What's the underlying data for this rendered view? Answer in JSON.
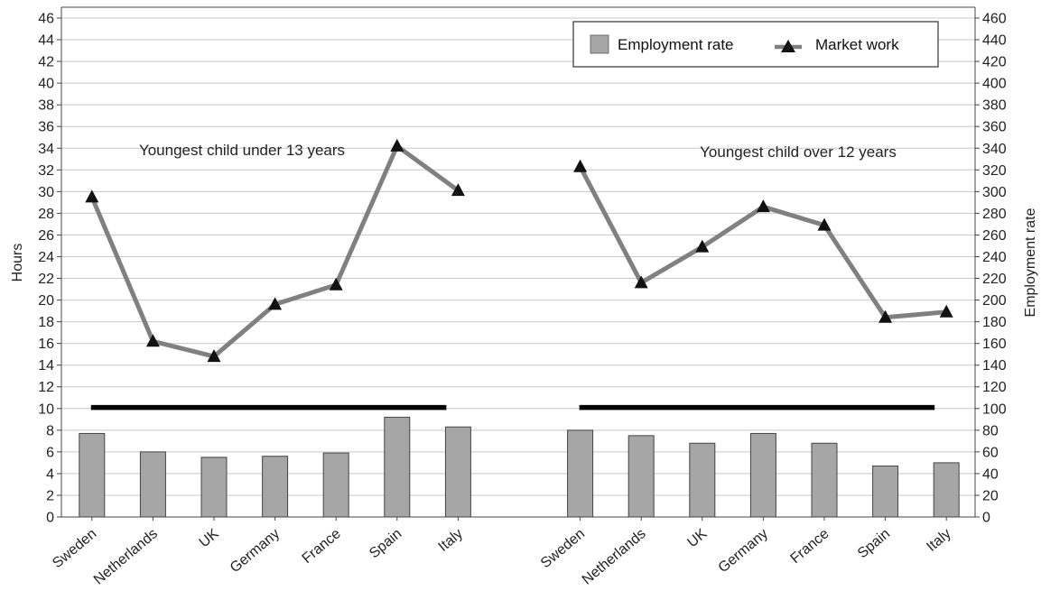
{
  "chart_data": {
    "type": "bar",
    "left_axis": {
      "label": "Hours",
      "min": 0,
      "max": 46,
      "step": 2
    },
    "right_axis": {
      "label": "Employment rate",
      "min": 0,
      "max": 460,
      "step": 20
    },
    "legend": {
      "position": "top-right",
      "items": [
        "Employment rate",
        "Market work"
      ]
    },
    "annotations": [
      "Youngest child under 13 years",
      "Youngest child over 12 years"
    ],
    "reference_line": {
      "axis": "right",
      "value": 101
    },
    "colors": {
      "bar": "#a6a6a6",
      "line": "#808080",
      "marker": "#111111",
      "ref_line": "#000000"
    },
    "groups": [
      {
        "annotation": "Youngest child under 13 years",
        "categories": [
          "Sweden",
          "Netherlands",
          "UK",
          "Germany",
          "France",
          "Spain",
          "Italy"
        ],
        "series": [
          {
            "name": "Employment rate",
            "type": "bar",
            "axis": "right",
            "values": [
              77,
              60,
              55,
              56,
              59,
              92,
              83
            ]
          },
          {
            "name": "Market work",
            "type": "line",
            "axis": "left",
            "values": [
              29.5,
              16.2,
              14.8,
              19.6,
              21.4,
              34.2,
              30.1
            ]
          }
        ]
      },
      {
        "annotation": "Youngest child over 12 years",
        "categories": [
          "Sweden",
          "Netherlands",
          "UK",
          "Germany",
          "France",
          "Spain",
          "Italy"
        ],
        "series": [
          {
            "name": "Employment rate",
            "type": "bar",
            "axis": "right",
            "values": [
              80,
              75,
              68,
              77,
              68,
              47,
              50
            ]
          },
          {
            "name": "Market work",
            "type": "line",
            "axis": "left",
            "values": [
              32.3,
              21.6,
              24.9,
              28.6,
              26.9,
              18.4,
              18.9
            ]
          }
        ]
      }
    ]
  }
}
